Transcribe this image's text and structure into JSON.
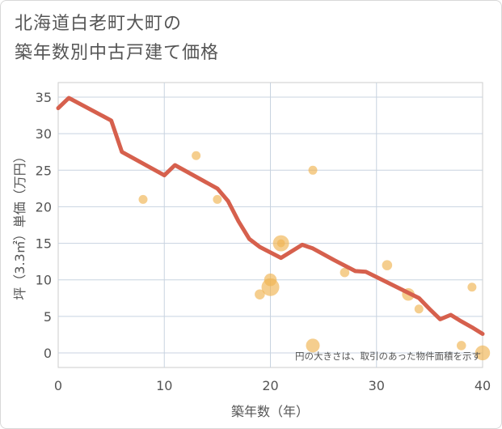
{
  "title_line1": "北海道白老町大町の",
  "title_line2": "築年数別中古戸建て価格",
  "chart_data": {
    "type": "scatter",
    "xlabel": "築年数（年）",
    "ylabel": "坪（3.3㎡）単価（万円）",
    "xlim": [
      0,
      40
    ],
    "ylim": [
      -2,
      37
    ],
    "xticks": [
      0,
      10,
      20,
      30,
      40
    ],
    "yticks": [
      0,
      5,
      10,
      15,
      20,
      25,
      30,
      35
    ],
    "grid": true,
    "note": "円の大きさは、取引のあった物件面積を示す",
    "colors": {
      "points": "#f0b452",
      "line": "#d6604d"
    },
    "points": [
      {
        "x": 8,
        "y": 21,
        "size": 1
      },
      {
        "x": 13,
        "y": 27,
        "size": 1
      },
      {
        "x": 15,
        "y": 21,
        "size": 1
      },
      {
        "x": 19,
        "y": 8,
        "size": 1.3
      },
      {
        "x": 20,
        "y": 9,
        "size": 4
      },
      {
        "x": 20,
        "y": 10,
        "size": 2
      },
      {
        "x": 21,
        "y": 15,
        "size": 3.3
      },
      {
        "x": 21,
        "y": 15,
        "size": 0.8
      },
      {
        "x": 24,
        "y": 25,
        "size": 1
      },
      {
        "x": 24,
        "y": 1,
        "size": 2.4
      },
      {
        "x": 27,
        "y": 11,
        "size": 1.1
      },
      {
        "x": 31,
        "y": 12,
        "size": 1.3
      },
      {
        "x": 33,
        "y": 8,
        "size": 2
      },
      {
        "x": 34,
        "y": 6,
        "size": 1
      },
      {
        "x": 38,
        "y": 1,
        "size": 1.1
      },
      {
        "x": 39,
        "y": 9,
        "size": 1
      },
      {
        "x": 40,
        "y": 0,
        "size": 2.8
      }
    ],
    "trend": {
      "x": [
        0,
        1,
        5,
        6,
        10,
        11,
        15,
        16,
        17,
        18,
        19,
        21,
        23,
        24,
        26,
        28,
        29,
        34,
        35,
        36,
        37,
        38,
        39,
        40
      ],
      "y": [
        33.5,
        34.9,
        31.8,
        27.5,
        24.3,
        25.7,
        22.5,
        20.8,
        18.0,
        15.6,
        14.5,
        13.0,
        14.8,
        14.3,
        12.7,
        11.2,
        11.1,
        7.5,
        6.0,
        4.6,
        5.2,
        4.3,
        3.5,
        2.6
      ]
    }
  }
}
